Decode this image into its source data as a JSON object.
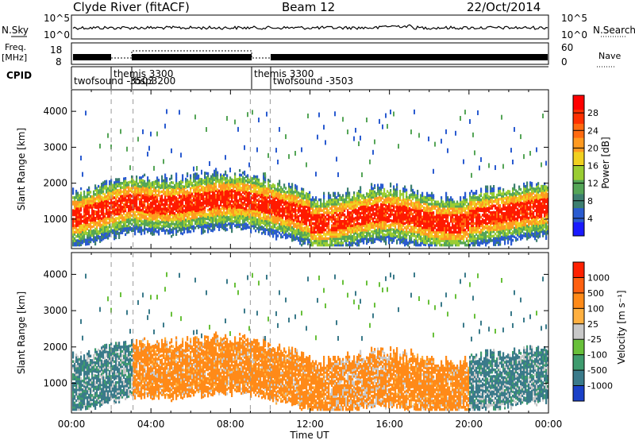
{
  "header": {
    "station": "Clyde River (fitACF)",
    "beam": "Beam 12",
    "date": "22/Oct/2014"
  },
  "side_panels": {
    "nsky_label": "N.Sky",
    "nsearch_label": "N.Search",
    "freq_label_1": "Freq.",
    "freq_label_2": "[MHz]",
    "nave_label": "Nave",
    "cpid_label": "CPID",
    "noise_top": "10^5",
    "noise_bottom": "10^0",
    "freq_top": "18",
    "freq_bottom": "8",
    "nave_top": "60",
    "nave_bottom": "0",
    "cpid_entries": [
      "twofsound -3503",
      "themis 3300",
      "-rbsp3200",
      "themis 3300",
      "twofsound -3503"
    ]
  },
  "chart_data": [
    {
      "type": "heatmap",
      "name": "power",
      "ylabel": "Slant Range [km]",
      "ytick_labels": [
        "1000",
        "2000",
        "3000",
        "4000"
      ],
      "yticks": [
        1000,
        2000,
        3000,
        4000
      ],
      "ylim": [
        180,
        4600
      ],
      "xlim": [
        0,
        24
      ],
      "colorbar": {
        "label": "Power [dB]",
        "ticks": [
          "4",
          "8",
          "12",
          "16",
          "20",
          "24",
          "28"
        ],
        "range": [
          0,
          32
        ],
        "colors": [
          "#1a1aff",
          "#2a5bd0",
          "#3d7f70",
          "#55a557",
          "#9acd32",
          "#f0d020",
          "#ff9a20",
          "#ff6a10",
          "#ff3000",
          "#ff0000"
        ]
      }
    },
    {
      "type": "heatmap",
      "name": "velocity",
      "ylabel": "Slant Range [km]",
      "ytick_labels": [
        "1000",
        "2000",
        "3000",
        "4000"
      ],
      "yticks": [
        1000,
        2000,
        3000,
        4000
      ],
      "ylim": [
        180,
        4600
      ],
      "xlim": [
        0,
        24
      ],
      "xlabel": "Time UT",
      "xtick_labels": [
        "00:00",
        "04:00",
        "08:00",
        "12:00",
        "16:00",
        "20:00",
        "00:00"
      ],
      "xticks": [
        0,
        4,
        8,
        12,
        16,
        20,
        24
      ],
      "colorbar": {
        "label": "Velocity [m s⁻¹]",
        "ticks": [
          "1000",
          "500",
          "100",
          "25",
          "-25",
          "-100",
          "-500",
          "-1000"
        ],
        "colors": [
          "#1a40c8",
          "#3a7a8a",
          "#3e9b6e",
          "#68c03a",
          "#c8c8c8",
          "#ffb040",
          "#ff8a18",
          "#ff6010",
          "#ff2000"
        ]
      }
    }
  ]
}
